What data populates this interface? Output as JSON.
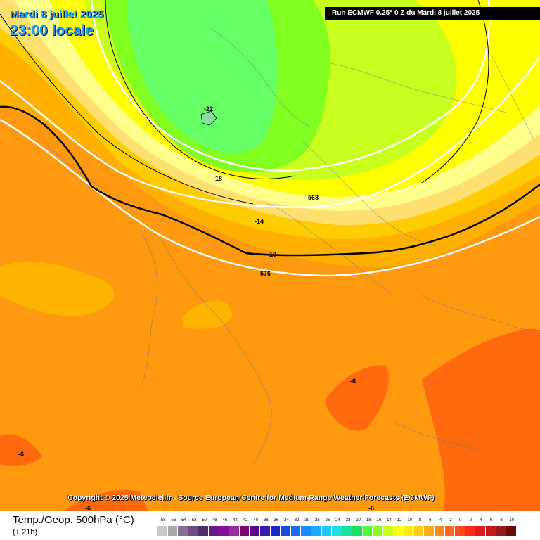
{
  "header": {
    "date": "Mardi 8 juillet 2025",
    "local_time": "23:00 locale",
    "run_info": "Run ECMWF 0.25° 0 Z du Mardi 8 juillet 2025"
  },
  "map_labels": {
    "temp_m22": "-22",
    "temp_m18": "-18",
    "temp_m14": "-14",
    "temp_m10": "-10",
    "temp_m6_a": "-6",
    "temp_m6_b": "-6",
    "temp_m6_c": "-6",
    "temp_m6_d": "-6",
    "geop_568": "568",
    "geop_576": "576"
  },
  "copyright": "Copyright © 2025 Meteociel.fr - Source European Centre for Medium-Range Weather Forecasts (ECMWF)",
  "legend": {
    "title": "Temp./Geop. 500hPa (°C)",
    "lead": "(+ 21h)",
    "scale_values": [
      "-58",
      "-56",
      "-54",
      "-52",
      "-50",
      "-48",
      "-46",
      "-44",
      "-42",
      "-40",
      "-38",
      "-36",
      "-34",
      "-32",
      "-30",
      "-28",
      "-26",
      "-24",
      "-22",
      "-20",
      "-18",
      "-16",
      "-14",
      "-12",
      "-10",
      "-8",
      "-6",
      "-4",
      "-2",
      "0",
      "2",
      "4",
      "6",
      "8",
      "10"
    ],
    "scale_colors": [
      "#c8c8c8",
      "#a8a8a8",
      "#8c6a9a",
      "#6e4a80",
      "#50306a",
      "#6a1a80",
      "#84109a",
      "#9a2aa0",
      "#7a0a6a",
      "#5a0a8a",
      "#3a1aaa",
      "#1a2aca",
      "#1a4ae0",
      "#1a6aff",
      "#1a8aff",
      "#1aaaff",
      "#1acaff",
      "#1ae0e0",
      "#1ae0a0",
      "#1ae060",
      "#4aff2a",
      "#8aff1a",
      "#caff1a",
      "#ffff1a",
      "#ffe81a",
      "#ffca1a",
      "#ffaa1a",
      "#ff8a1a",
      "#ff6a1a",
      "#ff4a1a",
      "#ff2a1a",
      "#e01a1a",
      "#c01a1a",
      "#9a1a1a",
      "#6a0a0a"
    ]
  },
  "colors": {
    "cold_core": "#66ff66",
    "green": "#7dff1e",
    "lime": "#c8ff1e",
    "yellow": "#ffff00",
    "pale_yellow": "#ffff96",
    "light_yellow": "#ffe878",
    "gold": "#ffcc00",
    "orange": "#ffaa00",
    "dark_orange": "#ff8c00",
    "warm": "#ff6a10"
  }
}
